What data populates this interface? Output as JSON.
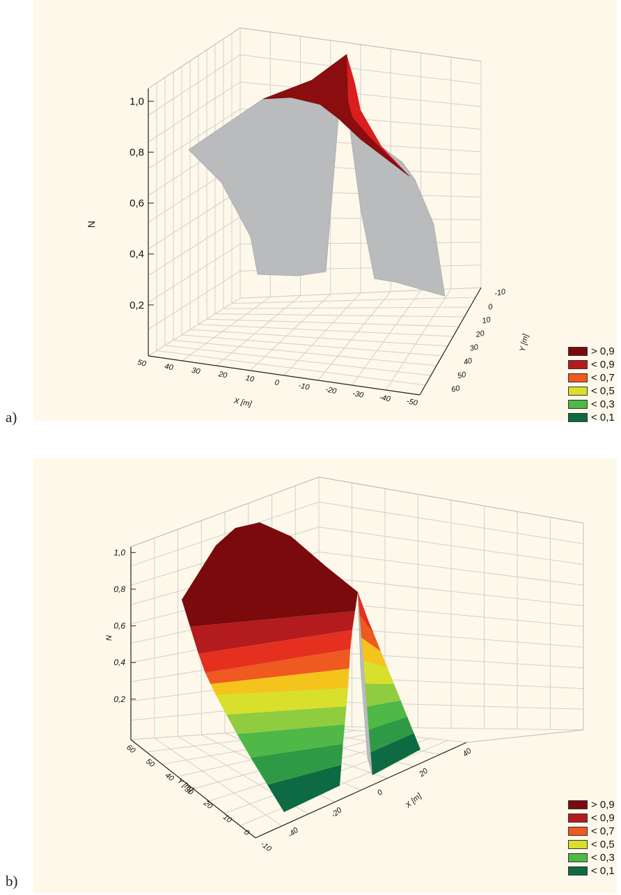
{
  "panels": [
    {
      "label": "a)",
      "chart_data": {
        "type": "surface3d",
        "title": "",
        "zlabel": "N",
        "xlabel": "X [m]",
        "ylabel": "Y [m]",
        "z_ticks": [
          "0,2",
          "0,4",
          "0,6",
          "0,8",
          "1,0"
        ],
        "x_ticks": [
          "50",
          "40",
          "30",
          "20",
          "10",
          "0",
          "-10",
          "-20",
          "-30",
          "-40",
          "-50"
        ],
        "y_ticks": [
          "-10",
          "0",
          "10",
          "20",
          "30",
          "40",
          "50",
          "60"
        ],
        "surface_color": "#b9bbbd",
        "peak": {
          "z": 1.0,
          "color": "#8b0d10",
          "note": "red band only near top"
        }
      }
    },
    {
      "label": "b)",
      "chart_data": {
        "type": "surface3d",
        "title": "",
        "zlabel": "N",
        "xlabel": "X [m]",
        "ylabel": "Y [m]",
        "z_ticks": [
          "0,2",
          "0,4",
          "0,6",
          "0,8",
          "1,0"
        ],
        "x_ticks": [
          "-40",
          "-20",
          "0",
          "20",
          "40"
        ],
        "y_ticks": [
          "60",
          "50",
          "40",
          "30",
          "20",
          "10",
          "0",
          "-10"
        ],
        "bands_z": [
          0.1,
          0.2,
          0.3,
          0.4,
          0.5,
          0.6,
          0.7,
          0.8,
          0.9,
          1.0
        ]
      }
    }
  ],
  "legend": {
    "items": [
      {
        "label": "> 0,9",
        "color": "#7a0a0c"
      },
      {
        "label": "< 0,9",
        "color": "#b31b1e"
      },
      {
        "label": "< 0,7",
        "color": "#ee5a1f"
      },
      {
        "label": "< 0,5",
        "color": "#d8e02c"
      },
      {
        "label": "< 0,3",
        "color": "#4fb847"
      },
      {
        "label": "< 0,1",
        "color": "#0e6a42"
      }
    ]
  }
}
